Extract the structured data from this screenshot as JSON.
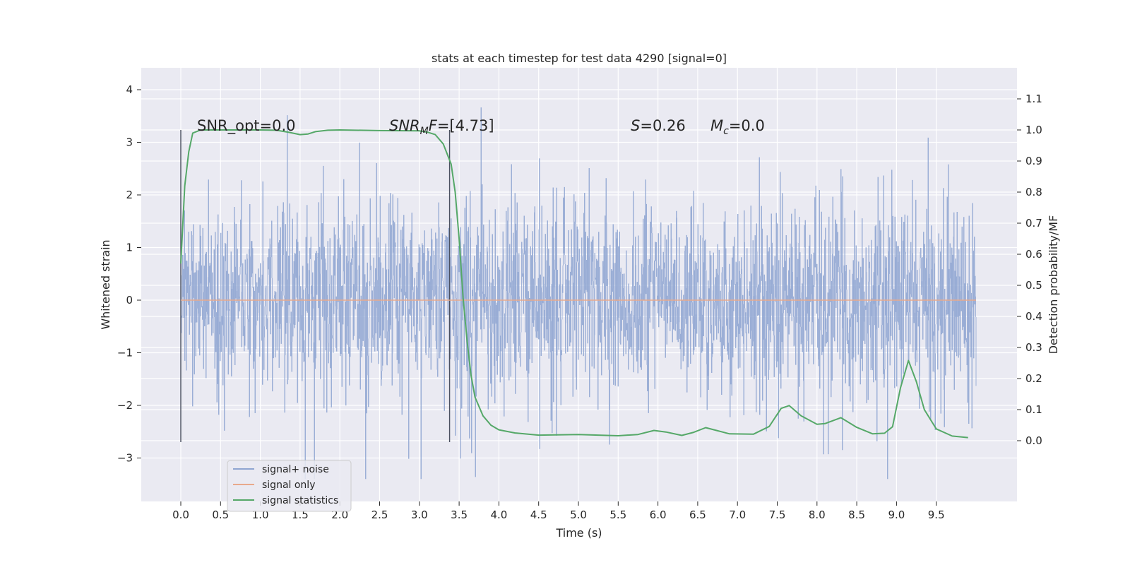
{
  "chart_data": {
    "type": "line",
    "title": "stats at each timestep for test data 4290 [signal=0]",
    "xlabel": "Time (s)",
    "ylabel_left": "Whitened strain",
    "ylabel_right": "Detection probability/MF",
    "xlim": [
      -0.4,
      10.4
    ],
    "ylim_left": [
      -3.77,
      4.4
    ],
    "ylim_right": [
      -0.2,
      1.2
    ],
    "x_ticks": [
      "0.0",
      "0.5",
      "1.0",
      "1.5",
      "2.0",
      "2.5",
      "3.0",
      "3.5",
      "4.0",
      "4.5",
      "5.0",
      "5.5",
      "6.0",
      "6.5",
      "7.0",
      "7.5",
      "8.0",
      "8.5",
      "9.0",
      "9.5"
    ],
    "y_ticks_left": [
      "−3",
      "−2",
      "−1",
      "0",
      "1",
      "2",
      "3",
      "4"
    ],
    "y_ticks_right": [
      "0.0",
      "0.1",
      "0.2",
      "0.3",
      "0.4",
      "0.5",
      "0.6",
      "0.7",
      "0.8",
      "0.9",
      "1.0",
      "1.1"
    ],
    "grid": true,
    "legend_placement": "lower-left",
    "series": [
      {
        "name": "signal+ noise",
        "color": "#8fa5d1",
        "axis": "left",
        "description_range": [
          -3.4,
          4.0
        ],
        "x_range": [
          0.0,
          10.0
        ]
      },
      {
        "name": "signal only",
        "color": "#e8a98c",
        "axis": "left",
        "constant": 0.0,
        "x_range": [
          0.0,
          10.0
        ]
      },
      {
        "name": "signal statistics",
        "color": "#55a868",
        "axis": "right",
        "points": [
          [
            0.0,
            0.57
          ],
          [
            0.05,
            0.82
          ],
          [
            0.1,
            0.93
          ],
          [
            0.15,
            0.99
          ],
          [
            0.25,
            1.0
          ],
          [
            0.5,
            1.0
          ],
          [
            0.8,
            1.0
          ],
          [
            1.0,
            1.0
          ],
          [
            1.2,
            0.999
          ],
          [
            1.35,
            0.993
          ],
          [
            1.5,
            0.985
          ],
          [
            1.6,
            0.987
          ],
          [
            1.7,
            0.995
          ],
          [
            1.85,
            0.999
          ],
          [
            2.0,
            1.0
          ],
          [
            2.5,
            0.998
          ],
          [
            3.0,
            0.997
          ],
          [
            3.1,
            0.993
          ],
          [
            3.2,
            0.985
          ],
          [
            3.3,
            0.955
          ],
          [
            3.4,
            0.89
          ],
          [
            3.45,
            0.8
          ],
          [
            3.5,
            0.65
          ],
          [
            3.55,
            0.46
          ],
          [
            3.6,
            0.32
          ],
          [
            3.65,
            0.21
          ],
          [
            3.7,
            0.14
          ],
          [
            3.8,
            0.08
          ],
          [
            3.9,
            0.05
          ],
          [
            4.0,
            0.035
          ],
          [
            4.2,
            0.025
          ],
          [
            4.5,
            0.018
          ],
          [
            5.0,
            0.02
          ],
          [
            5.5,
            0.016
          ],
          [
            5.75,
            0.02
          ],
          [
            5.95,
            0.033
          ],
          [
            6.1,
            0.028
          ],
          [
            6.3,
            0.017
          ],
          [
            6.45,
            0.027
          ],
          [
            6.6,
            0.042
          ],
          [
            6.75,
            0.032
          ],
          [
            6.9,
            0.022
          ],
          [
            7.2,
            0.021
          ],
          [
            7.4,
            0.046
          ],
          [
            7.55,
            0.104
          ],
          [
            7.65,
            0.113
          ],
          [
            7.8,
            0.08
          ],
          [
            8.0,
            0.053
          ],
          [
            8.1,
            0.055
          ],
          [
            8.3,
            0.074
          ],
          [
            8.5,
            0.043
          ],
          [
            8.7,
            0.022
          ],
          [
            8.85,
            0.024
          ],
          [
            8.95,
            0.045
          ],
          [
            9.05,
            0.17
          ],
          [
            9.15,
            0.258
          ],
          [
            9.25,
            0.19
          ],
          [
            9.35,
            0.1
          ],
          [
            9.5,
            0.038
          ],
          [
            9.7,
            0.015
          ],
          [
            9.9,
            0.01
          ]
        ]
      }
    ],
    "vlines": [
      0.0,
      3.38
    ],
    "annotations": {
      "snr_opt": "SNR_opt=0.0",
      "snr_mf_base": "SNR",
      "snr_mf_sub": "M",
      "snr_mf_rest": "F=[4.73]",
      "s_var": "S",
      "s_rest": "=0.26",
      "mc_var": "M",
      "mc_sub": "c",
      "mc_rest": "=0.0"
    }
  }
}
